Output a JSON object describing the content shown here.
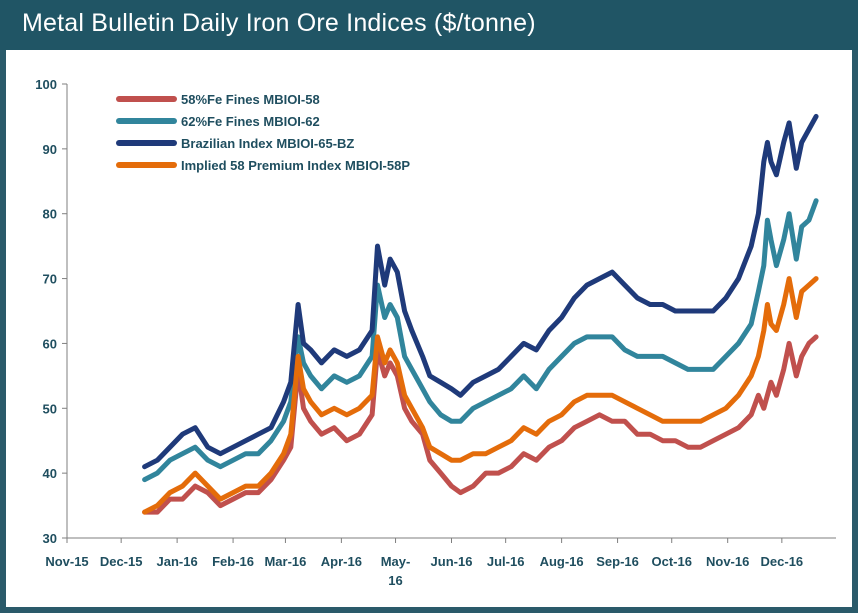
{
  "header": {
    "title": "Metal Bulletin Daily Iron Ore Indices ($/tonne)"
  },
  "colors": {
    "frame": "#205565",
    "axis_text": "#1f4e5f",
    "s58": "#c0504d",
    "s62": "#31859c",
    "sbz": "#1f3a7a",
    "s58p": "#e46c0a"
  },
  "chart_data": {
    "type": "line",
    "title": "Metal Bulletin Daily Iron Ore Indices ($/tonne)",
    "xlabel": "",
    "ylabel": "",
    "ylim": [
      30,
      100
    ],
    "yticks": [
      30,
      40,
      50,
      60,
      70,
      80,
      90,
      100
    ],
    "xtick_labels": [
      "Nov-15",
      "Dec-15",
      "Jan-16",
      "Feb-16",
      "Mar-16",
      "Apr-16",
      "May-16",
      "Jun-16",
      "Jul-16",
      "Aug-16",
      "Sep-16",
      "Oct-16",
      "Nov-16",
      "Dec-16"
    ],
    "xtick_dates": [
      "2015-11-01",
      "2015-12-01",
      "2016-01-01",
      "2016-02-01",
      "2016-03-01",
      "2016-04-01",
      "2016-05-01",
      "2016-06-01",
      "2016-07-01",
      "2016-08-01",
      "2016-09-01",
      "2016-10-01",
      "2016-11-01",
      "2016-12-01"
    ],
    "grid": false,
    "legend_position": "top-left",
    "series": [
      {
        "name": "58%Fe Fines MBIOI-58",
        "color": "#c0504d",
        "points": [
          [
            "2015-12-14",
            34
          ],
          [
            "2015-12-21",
            34
          ],
          [
            "2015-12-28",
            36
          ],
          [
            "2016-01-04",
            36
          ],
          [
            "2016-01-11",
            38
          ],
          [
            "2016-01-18",
            37
          ],
          [
            "2016-01-25",
            35
          ],
          [
            "2016-02-01",
            36
          ],
          [
            "2016-02-08",
            37
          ],
          [
            "2016-02-15",
            37
          ],
          [
            "2016-02-22",
            39
          ],
          [
            "2016-02-29",
            42
          ],
          [
            "2016-03-04",
            44
          ],
          [
            "2016-03-08",
            56
          ],
          [
            "2016-03-11",
            50
          ],
          [
            "2016-03-15",
            48
          ],
          [
            "2016-03-21",
            46
          ],
          [
            "2016-03-28",
            47
          ],
          [
            "2016-04-04",
            45
          ],
          [
            "2016-04-11",
            46
          ],
          [
            "2016-04-18",
            49
          ],
          [
            "2016-04-21",
            59
          ],
          [
            "2016-04-25",
            55
          ],
          [
            "2016-04-28",
            57
          ],
          [
            "2016-05-02",
            55
          ],
          [
            "2016-05-06",
            50
          ],
          [
            "2016-05-10",
            48
          ],
          [
            "2016-05-16",
            46
          ],
          [
            "2016-05-20",
            42
          ],
          [
            "2016-05-26",
            40
          ],
          [
            "2016-06-01",
            38
          ],
          [
            "2016-06-06",
            37
          ],
          [
            "2016-06-13",
            38
          ],
          [
            "2016-06-20",
            40
          ],
          [
            "2016-06-27",
            40
          ],
          [
            "2016-07-04",
            41
          ],
          [
            "2016-07-11",
            43
          ],
          [
            "2016-07-18",
            42
          ],
          [
            "2016-07-25",
            44
          ],
          [
            "2016-08-01",
            45
          ],
          [
            "2016-08-08",
            47
          ],
          [
            "2016-08-15",
            48
          ],
          [
            "2016-08-22",
            49
          ],
          [
            "2016-08-29",
            48
          ],
          [
            "2016-09-05",
            48
          ],
          [
            "2016-09-12",
            46
          ],
          [
            "2016-09-19",
            46
          ],
          [
            "2016-09-26",
            45
          ],
          [
            "2016-10-03",
            45
          ],
          [
            "2016-10-10",
            44
          ],
          [
            "2016-10-17",
            44
          ],
          [
            "2016-10-24",
            45
          ],
          [
            "2016-10-31",
            46
          ],
          [
            "2016-11-07",
            47
          ],
          [
            "2016-11-14",
            49
          ],
          [
            "2016-11-18",
            52
          ],
          [
            "2016-11-21",
            50
          ],
          [
            "2016-11-25",
            54
          ],
          [
            "2016-11-28",
            52
          ],
          [
            "2016-12-02",
            56
          ],
          [
            "2016-12-05",
            60
          ],
          [
            "2016-12-09",
            55
          ],
          [
            "2016-12-12",
            58
          ],
          [
            "2016-12-16",
            60
          ],
          [
            "2016-12-20",
            61
          ]
        ]
      },
      {
        "name": "62%Fe Fines MBIOI-62",
        "color": "#31859c",
        "points": [
          [
            "2015-12-14",
            39
          ],
          [
            "2015-12-21",
            40
          ],
          [
            "2015-12-28",
            42
          ],
          [
            "2016-01-04",
            43
          ],
          [
            "2016-01-11",
            44
          ],
          [
            "2016-01-18",
            42
          ],
          [
            "2016-01-25",
            41
          ],
          [
            "2016-02-01",
            42
          ],
          [
            "2016-02-08",
            43
          ],
          [
            "2016-02-15",
            43
          ],
          [
            "2016-02-22",
            45
          ],
          [
            "2016-02-29",
            48
          ],
          [
            "2016-03-04",
            51
          ],
          [
            "2016-03-08",
            61
          ],
          [
            "2016-03-11",
            57
          ],
          [
            "2016-03-15",
            55
          ],
          [
            "2016-03-21",
            53
          ],
          [
            "2016-03-28",
            55
          ],
          [
            "2016-04-04",
            54
          ],
          [
            "2016-04-11",
            55
          ],
          [
            "2016-04-18",
            58
          ],
          [
            "2016-04-21",
            69
          ],
          [
            "2016-04-25",
            64
          ],
          [
            "2016-04-28",
            66
          ],
          [
            "2016-05-02",
            64
          ],
          [
            "2016-05-06",
            58
          ],
          [
            "2016-05-10",
            56
          ],
          [
            "2016-05-16",
            53
          ],
          [
            "2016-05-20",
            51
          ],
          [
            "2016-05-26",
            49
          ],
          [
            "2016-06-01",
            48
          ],
          [
            "2016-06-06",
            48
          ],
          [
            "2016-06-13",
            50
          ],
          [
            "2016-06-20",
            51
          ],
          [
            "2016-06-27",
            52
          ],
          [
            "2016-07-04",
            53
          ],
          [
            "2016-07-11",
            55
          ],
          [
            "2016-07-18",
            53
          ],
          [
            "2016-07-25",
            56
          ],
          [
            "2016-08-01",
            58
          ],
          [
            "2016-08-08",
            60
          ],
          [
            "2016-08-15",
            61
          ],
          [
            "2016-08-22",
            61
          ],
          [
            "2016-08-29",
            61
          ],
          [
            "2016-09-05",
            59
          ],
          [
            "2016-09-12",
            58
          ],
          [
            "2016-09-19",
            58
          ],
          [
            "2016-09-26",
            58
          ],
          [
            "2016-10-03",
            57
          ],
          [
            "2016-10-10",
            56
          ],
          [
            "2016-10-17",
            56
          ],
          [
            "2016-10-24",
            56
          ],
          [
            "2016-10-31",
            58
          ],
          [
            "2016-11-07",
            60
          ],
          [
            "2016-11-14",
            63
          ],
          [
            "2016-11-18",
            68
          ],
          [
            "2016-11-21",
            72
          ],
          [
            "2016-11-23",
            79
          ],
          [
            "2016-11-25",
            76
          ],
          [
            "2016-11-28",
            72
          ],
          [
            "2016-12-02",
            76
          ],
          [
            "2016-12-05",
            80
          ],
          [
            "2016-12-09",
            73
          ],
          [
            "2016-12-12",
            78
          ],
          [
            "2016-12-16",
            79
          ],
          [
            "2016-12-20",
            82
          ]
        ]
      },
      {
        "name": "Brazilian Index MBIOI-65-BZ",
        "color": "#1f3a7a",
        "points": [
          [
            "2015-12-14",
            41
          ],
          [
            "2015-12-21",
            42
          ],
          [
            "2015-12-28",
            44
          ],
          [
            "2016-01-04",
            46
          ],
          [
            "2016-01-11",
            47
          ],
          [
            "2016-01-18",
            44
          ],
          [
            "2016-01-25",
            43
          ],
          [
            "2016-02-01",
            44
          ],
          [
            "2016-02-08",
            45
          ],
          [
            "2016-02-15",
            46
          ],
          [
            "2016-02-22",
            47
          ],
          [
            "2016-02-29",
            51
          ],
          [
            "2016-03-04",
            54
          ],
          [
            "2016-03-08",
            66
          ],
          [
            "2016-03-11",
            60
          ],
          [
            "2016-03-15",
            59
          ],
          [
            "2016-03-21",
            57
          ],
          [
            "2016-03-28",
            59
          ],
          [
            "2016-04-04",
            58
          ],
          [
            "2016-04-11",
            59
          ],
          [
            "2016-04-18",
            62
          ],
          [
            "2016-04-21",
            75
          ],
          [
            "2016-04-25",
            69
          ],
          [
            "2016-04-28",
            73
          ],
          [
            "2016-05-02",
            71
          ],
          [
            "2016-05-06",
            65
          ],
          [
            "2016-05-10",
            62
          ],
          [
            "2016-05-16",
            58
          ],
          [
            "2016-05-20",
            55
          ],
          [
            "2016-05-26",
            54
          ],
          [
            "2016-06-01",
            53
          ],
          [
            "2016-06-06",
            52
          ],
          [
            "2016-06-13",
            54
          ],
          [
            "2016-06-20",
            55
          ],
          [
            "2016-06-27",
            56
          ],
          [
            "2016-07-04",
            58
          ],
          [
            "2016-07-11",
            60
          ],
          [
            "2016-07-18",
            59
          ],
          [
            "2016-07-25",
            62
          ],
          [
            "2016-08-01",
            64
          ],
          [
            "2016-08-08",
            67
          ],
          [
            "2016-08-15",
            69
          ],
          [
            "2016-08-22",
            70
          ],
          [
            "2016-08-29",
            71
          ],
          [
            "2016-09-05",
            69
          ],
          [
            "2016-09-12",
            67
          ],
          [
            "2016-09-19",
            66
          ],
          [
            "2016-09-26",
            66
          ],
          [
            "2016-10-03",
            65
          ],
          [
            "2016-10-10",
            65
          ],
          [
            "2016-10-17",
            65
          ],
          [
            "2016-10-24",
            65
          ],
          [
            "2016-10-31",
            67
          ],
          [
            "2016-11-07",
            70
          ],
          [
            "2016-11-14",
            75
          ],
          [
            "2016-11-18",
            80
          ],
          [
            "2016-11-21",
            88
          ],
          [
            "2016-11-23",
            91
          ],
          [
            "2016-11-25",
            88
          ],
          [
            "2016-11-28",
            86
          ],
          [
            "2016-12-02",
            91
          ],
          [
            "2016-12-05",
            94
          ],
          [
            "2016-12-09",
            87
          ],
          [
            "2016-12-12",
            91
          ],
          [
            "2016-12-16",
            93
          ],
          [
            "2016-12-20",
            95
          ]
        ]
      },
      {
        "name": "Implied 58 Premium Index MBIOI-58P",
        "color": "#e46c0a",
        "points": [
          [
            "2015-12-14",
            34
          ],
          [
            "2015-12-21",
            35
          ],
          [
            "2015-12-28",
            37
          ],
          [
            "2016-01-04",
            38
          ],
          [
            "2016-01-11",
            40
          ],
          [
            "2016-01-18",
            38
          ],
          [
            "2016-01-25",
            36
          ],
          [
            "2016-02-01",
            37
          ],
          [
            "2016-02-08",
            38
          ],
          [
            "2016-02-15",
            38
          ],
          [
            "2016-02-22",
            40
          ],
          [
            "2016-02-29",
            43
          ],
          [
            "2016-03-04",
            46
          ],
          [
            "2016-03-08",
            58
          ],
          [
            "2016-03-11",
            53
          ],
          [
            "2016-03-15",
            51
          ],
          [
            "2016-03-21",
            49
          ],
          [
            "2016-03-28",
            50
          ],
          [
            "2016-04-04",
            49
          ],
          [
            "2016-04-11",
            50
          ],
          [
            "2016-04-18",
            52
          ],
          [
            "2016-04-21",
            61
          ],
          [
            "2016-04-25",
            57
          ],
          [
            "2016-04-28",
            59
          ],
          [
            "2016-05-02",
            57
          ],
          [
            "2016-05-06",
            52
          ],
          [
            "2016-05-10",
            50
          ],
          [
            "2016-05-16",
            47
          ],
          [
            "2016-05-20",
            44
          ],
          [
            "2016-05-26",
            43
          ],
          [
            "2016-06-01",
            42
          ],
          [
            "2016-06-06",
            42
          ],
          [
            "2016-06-13",
            43
          ],
          [
            "2016-06-20",
            43
          ],
          [
            "2016-06-27",
            44
          ],
          [
            "2016-07-04",
            45
          ],
          [
            "2016-07-11",
            47
          ],
          [
            "2016-07-18",
            46
          ],
          [
            "2016-07-25",
            48
          ],
          [
            "2016-08-01",
            49
          ],
          [
            "2016-08-08",
            51
          ],
          [
            "2016-08-15",
            52
          ],
          [
            "2016-08-22",
            52
          ],
          [
            "2016-08-29",
            52
          ],
          [
            "2016-09-05",
            51
          ],
          [
            "2016-09-12",
            50
          ],
          [
            "2016-09-19",
            49
          ],
          [
            "2016-09-26",
            48
          ],
          [
            "2016-10-03",
            48
          ],
          [
            "2016-10-10",
            48
          ],
          [
            "2016-10-17",
            48
          ],
          [
            "2016-10-24",
            49
          ],
          [
            "2016-10-31",
            50
          ],
          [
            "2016-11-07",
            52
          ],
          [
            "2016-11-14",
            55
          ],
          [
            "2016-11-18",
            58
          ],
          [
            "2016-11-21",
            62
          ],
          [
            "2016-11-23",
            66
          ],
          [
            "2016-11-25",
            63
          ],
          [
            "2016-11-28",
            62
          ],
          [
            "2016-12-02",
            66
          ],
          [
            "2016-12-05",
            70
          ],
          [
            "2016-12-09",
            64
          ],
          [
            "2016-12-12",
            68
          ],
          [
            "2016-12-16",
            69
          ],
          [
            "2016-12-20",
            70
          ]
        ]
      }
    ]
  }
}
